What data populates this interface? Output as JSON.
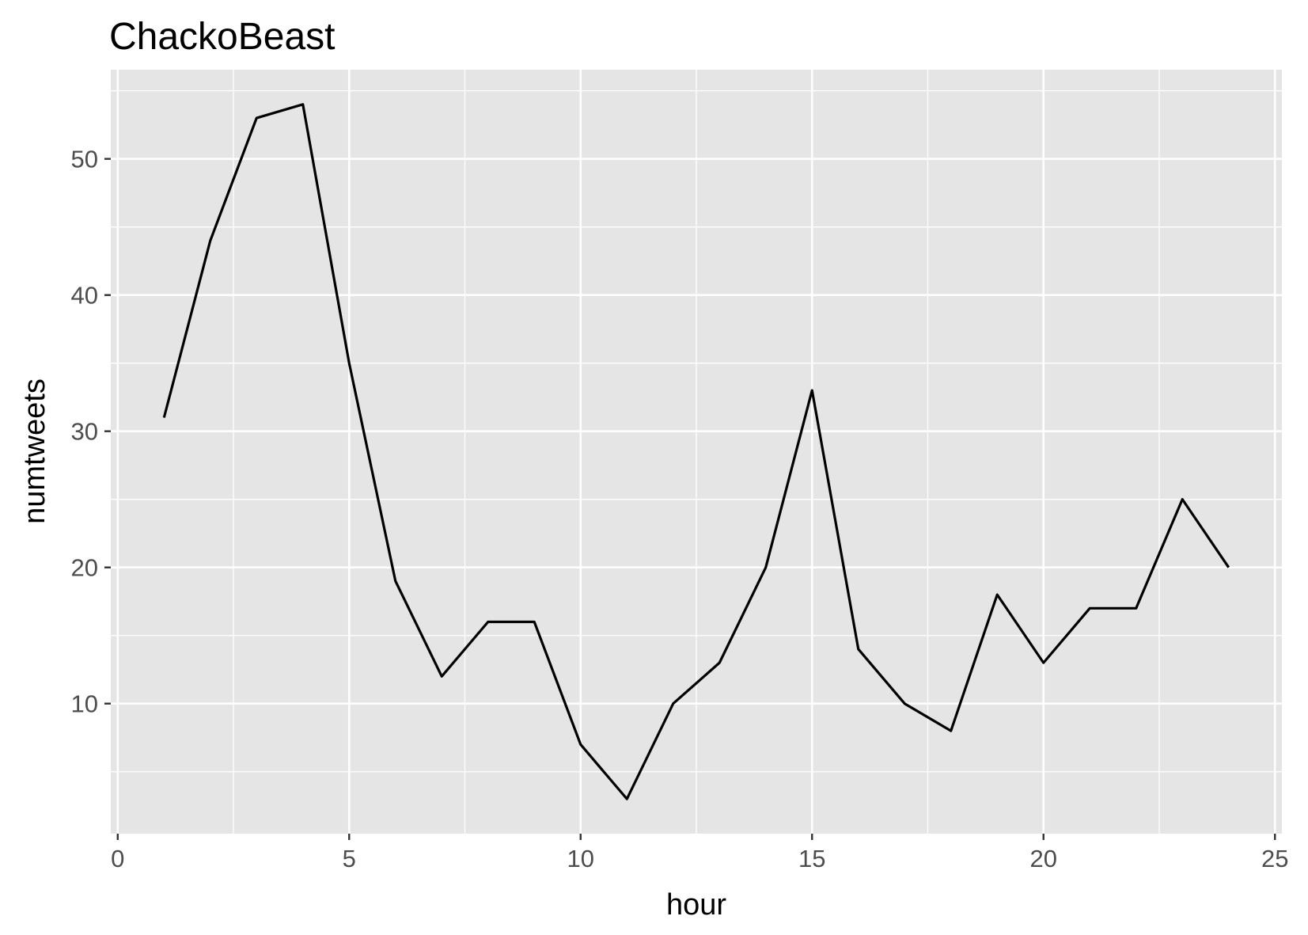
{
  "chart_data": {
    "type": "line",
    "title": "ChackoBeast",
    "xlabel": "hour",
    "ylabel": "numtweets",
    "xlim": [
      -0.15,
      25.15
    ],
    "ylim": [
      0.45,
      56.55
    ],
    "x_ticks": [
      0,
      5,
      10,
      15,
      20,
      25
    ],
    "y_ticks": [
      10,
      20,
      30,
      40,
      50
    ],
    "x_minor_ticks": [
      2.5,
      7.5,
      12.5,
      17.5,
      22.5
    ],
    "y_minor_ticks": [
      5,
      15,
      25,
      35,
      45,
      55
    ],
    "grid": true,
    "legend": "none",
    "series": [
      {
        "x": [
          1,
          2,
          3,
          4,
          5,
          6,
          7,
          8,
          9,
          10,
          11,
          12,
          13,
          14,
          15,
          16,
          17,
          18,
          19,
          20,
          21,
          22,
          23,
          24
        ],
        "values": [
          31,
          44,
          53,
          54,
          35,
          19,
          12,
          16,
          16,
          7,
          3,
          10,
          13,
          20,
          33,
          14,
          10,
          8,
          18,
          13,
          17,
          17,
          25,
          20
        ],
        "color": "#000000"
      }
    ],
    "colors": {
      "panel_background": "#e5e5e5",
      "grid_line": "#ffffff",
      "tick_label": "#4d4d4d",
      "tick_mark": "#333333"
    }
  }
}
